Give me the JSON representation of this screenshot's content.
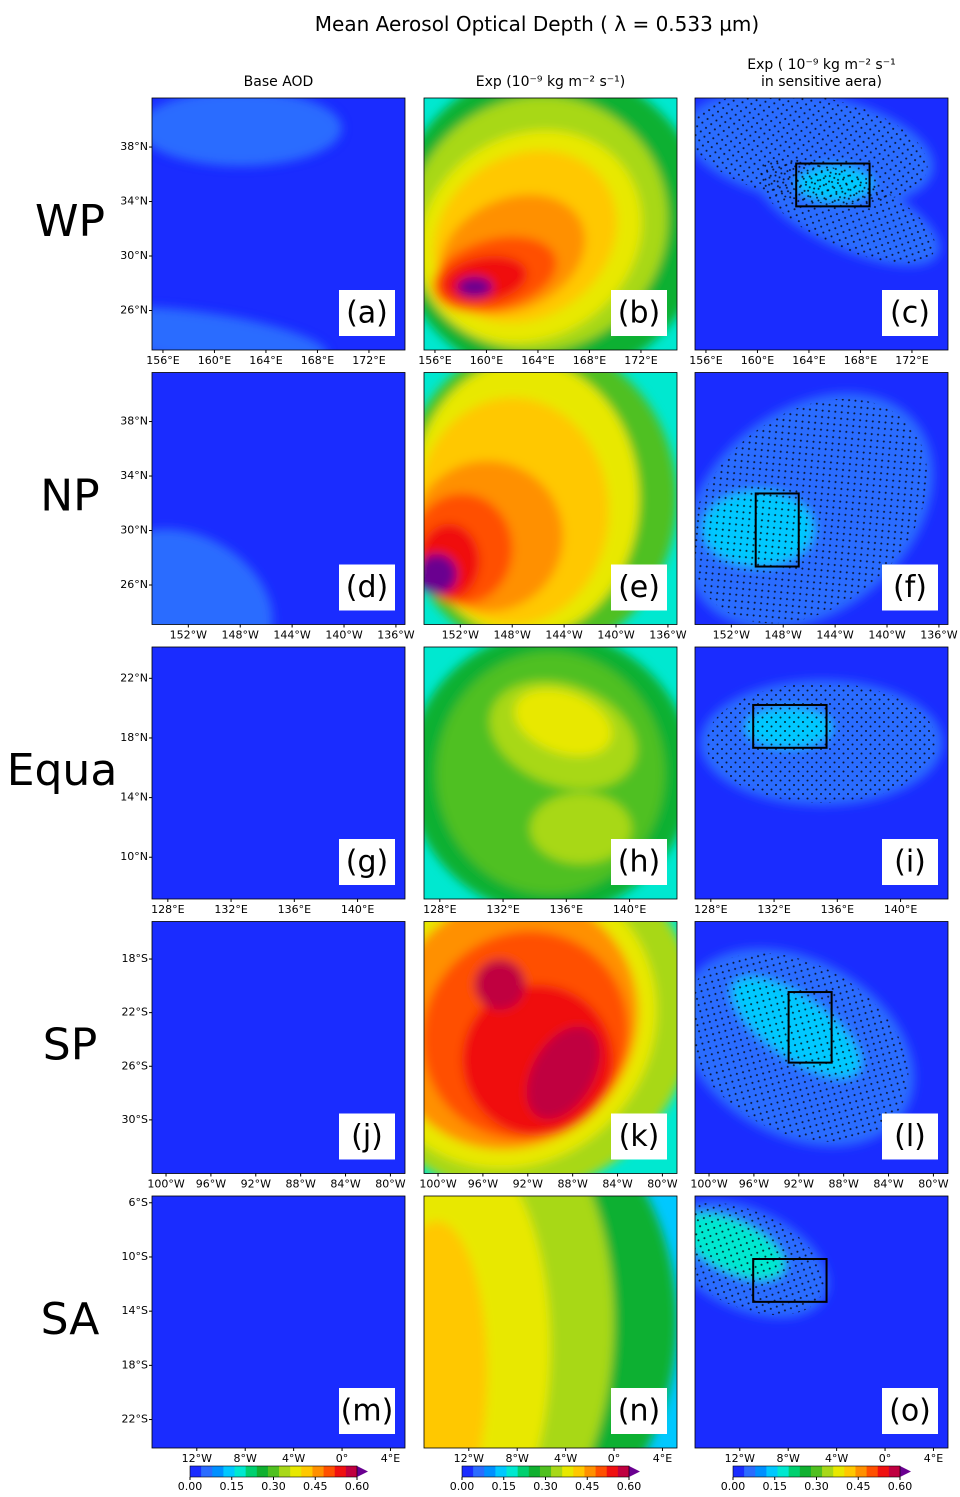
{
  "title": "Mean Aerosol Optical Depth ( λ = 0.533 µm)",
  "columns": [
    {
      "lines": [
        "Base AOD"
      ]
    },
    {
      "lines": [
        "Exp (10⁻⁹ kg m⁻² s⁻¹)"
      ]
    },
    {
      "lines": [
        "Exp ( 10⁻⁹ kg m⁻² s⁻¹",
        "in sensitive aera)"
      ]
    }
  ],
  "rows": [
    {
      "label": "WP",
      "panels": [
        "(a)",
        "(b)",
        "(c)"
      ],
      "latlim": [
        23.1,
        41.6
      ],
      "lonlim": [
        155.15,
        174.8
      ],
      "latticks": [
        {
          "value": 38,
          "label": "38°N"
        },
        {
          "value": 34,
          "label": "34°N"
        },
        {
          "value": 30,
          "label": "30°N"
        },
        {
          "value": 26,
          "label": "26°N"
        }
      ],
      "lonticks": [
        {
          "value": 156,
          "label": "156°E"
        },
        {
          "value": 160,
          "label": "160°E"
        },
        {
          "value": 164,
          "label": "164°E"
        },
        {
          "value": 168,
          "label": "168°E"
        },
        {
          "value": 172,
          "label": "172°E"
        }
      ]
    },
    {
      "label": "NP",
      "panels": [
        "(d)",
        "(e)",
        "(f)"
      ],
      "latlim": [
        23.1,
        41.6
      ],
      "lonlim": [
        -154.8,
        -135.3
      ],
      "latticks": [
        {
          "value": 38,
          "label": "38°N"
        },
        {
          "value": 34,
          "label": "34°N"
        },
        {
          "value": 30,
          "label": "30°N"
        },
        {
          "value": 26,
          "label": "26°N"
        }
      ],
      "lonticks": [
        {
          "value": -152,
          "label": "152°W"
        },
        {
          "value": -148,
          "label": "148°W"
        },
        {
          "value": -144,
          "label": "144°W"
        },
        {
          "value": -140,
          "label": "140°W"
        },
        {
          "value": -136,
          "label": "136°W"
        }
      ]
    },
    {
      "label": "Equa",
      "panels": [
        "(g)",
        "(h)",
        "(i)"
      ],
      "latlim": [
        7.2,
        24.1
      ],
      "lonlim": [
        127,
        143
      ],
      "latticks": [
        {
          "value": 22,
          "label": "22°N"
        },
        {
          "value": 18,
          "label": "18°N"
        },
        {
          "value": 14,
          "label": "14°N"
        },
        {
          "value": 10,
          "label": "10°N"
        }
      ],
      "lonticks": [
        {
          "value": 128,
          "label": "128°E"
        },
        {
          "value": 132,
          "label": "132°E"
        },
        {
          "value": 136,
          "label": "136°E"
        },
        {
          "value": 140,
          "label": "140°E"
        }
      ]
    },
    {
      "label": "SP",
      "panels": [
        "(j)",
        "(k)",
        "(l)"
      ],
      "latlim": [
        -34,
        -15.2
      ],
      "lonlim": [
        -101.25,
        -78.7
      ],
      "latticks": [
        {
          "value": -18,
          "label": "18°S"
        },
        {
          "value": -22,
          "label": "22°S"
        },
        {
          "value": -26,
          "label": "26°S"
        },
        {
          "value": -30,
          "label": "30°S"
        }
      ],
      "lonticks": [
        {
          "value": -100,
          "label": "100°W"
        },
        {
          "value": -96,
          "label": "96°W"
        },
        {
          "value": -92,
          "label": "92°W"
        },
        {
          "value": -88,
          "label": "88°W"
        },
        {
          "value": -84,
          "label": "84°W"
        },
        {
          "value": -80,
          "label": "80°W"
        }
      ]
    },
    {
      "label": "SA",
      "panels": [
        "(m)",
        "(n)",
        "(o)"
      ],
      "latlim": [
        -24.1,
        -5.5
      ],
      "lonlim": [
        -15.7,
        5.2
      ],
      "latticks": [
        {
          "value": -6,
          "label": "6°S"
        },
        {
          "value": -10,
          "label": "10°S"
        },
        {
          "value": -14,
          "label": "14°S"
        },
        {
          "value": -18,
          "label": "18°S"
        },
        {
          "value": -22,
          "label": "22°S"
        }
      ],
      "lonticks": [
        {
          "value": -12,
          "label": "12°W"
        },
        {
          "value": -8,
          "label": "8°W"
        },
        {
          "value": -4,
          "label": "4°W"
        },
        {
          "value": 0,
          "label": "0°"
        },
        {
          "value": 4,
          "label": "4°E"
        }
      ]
    }
  ],
  "colorbar": {
    "lim": [
      0,
      0.6
    ],
    "ticks": [
      {
        "value": 0,
        "label": "0.00"
      },
      {
        "value": 0.15,
        "label": "0.15"
      },
      {
        "value": 0.3,
        "label": "0.30"
      },
      {
        "value": 0.45,
        "label": "0.45"
      },
      {
        "value": 0.6,
        "label": "0.60"
      }
    ],
    "colors": [
      "#1a2cff",
      "#2a6cff",
      "#0090ff",
      "#00c8ff",
      "#00e8d0",
      "#00d070",
      "#10b030",
      "#50c020",
      "#a8d818",
      "#e8e800",
      "#ffc800",
      "#ff9000",
      "#ff5000",
      "#f01010",
      "#c00040",
      "#6a0090"
    ]
  }
}
